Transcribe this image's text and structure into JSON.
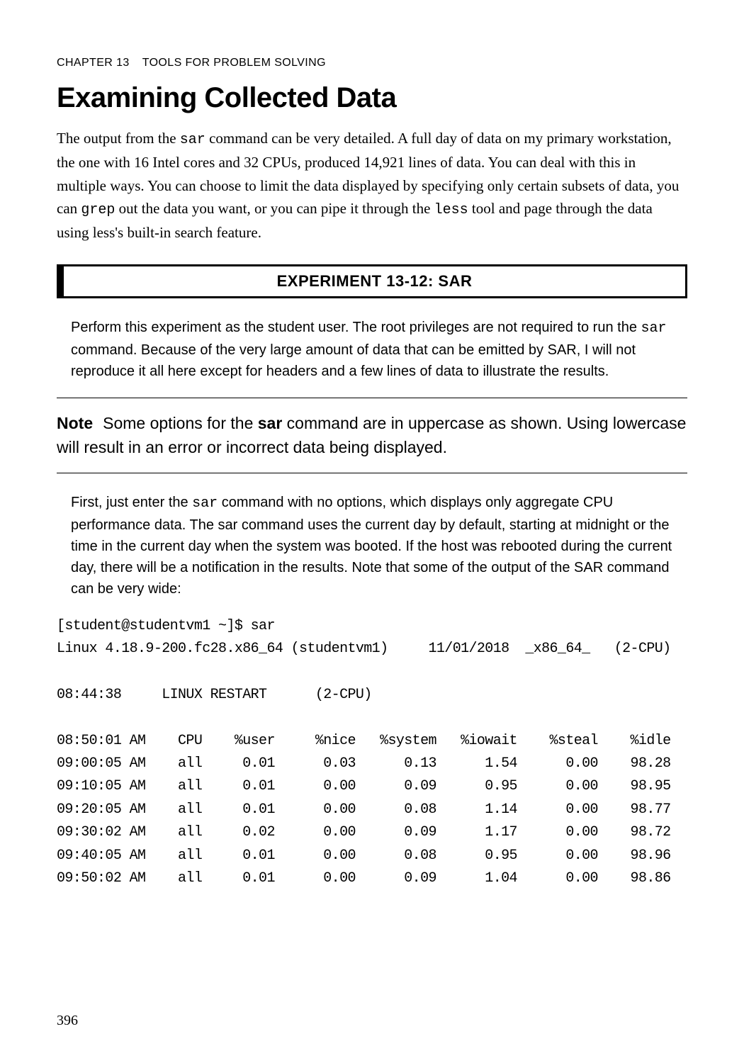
{
  "chapter": {
    "label_prefix": "CHAPTER 13",
    "label_suffix": "TOOLS FOR PROBLEM SOLVING"
  },
  "section_title": "Examining Collected Data",
  "body_para": {
    "t1": "The output from the ",
    "sar": "sar",
    "t2": " command can be very detailed. A full day of data on my primary workstation, the one with 16 Intel cores and 32 CPUs, produced 14,921 lines of data. You can deal with this in multiple ways. You can choose to limit the data displayed by specifying only certain subsets of data, you can ",
    "grep": "grep",
    "t3": " out the data you want, or you can pipe it through the ",
    "less": "less",
    "t4": " tool and page through the data using less's built-in search feature."
  },
  "experiment_title": "EXPERIMENT 13-12: SAR",
  "exp_para1": {
    "t1": "Perform this experiment as the student user. The root privileges are not required to run the ",
    "sar": "sar",
    "t2": " command. Because of the very large amount of data that can be emitted by SAR, I will not reproduce it all here except for headers and a few lines of data to illustrate the results."
  },
  "note": {
    "label": "Note",
    "t1": "Some options for the ",
    "sar_bold": "sar",
    "t2": " command are in uppercase as shown. Using lowercase will result in an error or incorrect data being displayed."
  },
  "exp_para2": {
    "t1": "First, just enter the ",
    "sar": "sar",
    "t2": " command with no options, which displays only aggregate CPU performance data. The sar command uses the current day by default, starting at midnight or the time in the current day when the system was booted. If the host was rebooted during the current day, there will be a notification in the results. Note that some of the output of the SAR command can be very wide:"
  },
  "terminal": {
    "l0": "[student@studentvm1 ~]$ sar",
    "l1": "Linux 4.18.9-200.fc28.x86_64 (studentvm1)     11/01/2018  _x86_64_   (2-CPU)",
    "l2": "",
    "l3": "08:44:38     LINUX RESTART      (2-CPU)",
    "l4": "",
    "l5": "08:50:01 AM    CPU    %user     %nice   %system   %iowait    %steal    %idle",
    "l6": "09:00:05 AM    all     0.01      0.03      0.13      1.54      0.00    98.28",
    "l7": "09:10:05 AM    all     0.01      0.00      0.09      0.95      0.00    98.95",
    "l8": "09:20:05 AM    all     0.01      0.00      0.08      1.14      0.00    98.77",
    "l9": "09:30:02 AM    all     0.02      0.00      0.09      1.17      0.00    98.72",
    "l10": "09:40:05 AM    all     0.01      0.00      0.08      0.95      0.00    98.96",
    "l11": "09:50:02 AM    all     0.01      0.00      0.09      1.04      0.00    98.86"
  },
  "page_number": "396"
}
